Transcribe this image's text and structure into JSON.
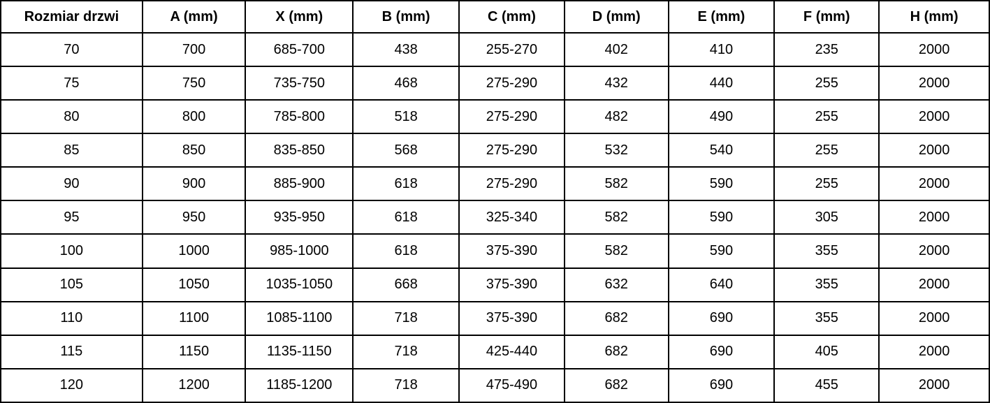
{
  "colors": {
    "border": "#000000",
    "text": "#000000",
    "background": "#ffffff"
  },
  "chart_data": {
    "type": "table",
    "title": "",
    "columns": [
      "Rozmiar drzwi",
      "A (mm)",
      "X (mm)",
      "B (mm)",
      "C (mm)",
      "D (mm)",
      "E (mm)",
      "F (mm)",
      "H (mm)"
    ],
    "rows": [
      [
        "70",
        "700",
        "685-700",
        "438",
        "255-270",
        "402",
        "410",
        "235",
        "2000"
      ],
      [
        "75",
        "750",
        "735-750",
        "468",
        "275-290",
        "432",
        "440",
        "255",
        "2000"
      ],
      [
        "80",
        "800",
        "785-800",
        "518",
        "275-290",
        "482",
        "490",
        "255",
        "2000"
      ],
      [
        "85",
        "850",
        "835-850",
        "568",
        "275-290",
        "532",
        "540",
        "255",
        "2000"
      ],
      [
        "90",
        "900",
        "885-900",
        "618",
        "275-290",
        "582",
        "590",
        "255",
        "2000"
      ],
      [
        "95",
        "950",
        "935-950",
        "618",
        "325-340",
        "582",
        "590",
        "305",
        "2000"
      ],
      [
        "100",
        "1000",
        "985-1000",
        "618",
        "375-390",
        "582",
        "590",
        "355",
        "2000"
      ],
      [
        "105",
        "1050",
        "1035-1050",
        "668",
        "375-390",
        "632",
        "640",
        "355",
        "2000"
      ],
      [
        "110",
        "1100",
        "1085-1100",
        "718",
        "375-390",
        "682",
        "690",
        "355",
        "2000"
      ],
      [
        "115",
        "1150",
        "1135-1150",
        "718",
        "425-440",
        "682",
        "690",
        "405",
        "2000"
      ],
      [
        "120",
        "1200",
        "1185-1200",
        "718",
        "475-490",
        "682",
        "690",
        "455",
        "2000"
      ]
    ]
  }
}
